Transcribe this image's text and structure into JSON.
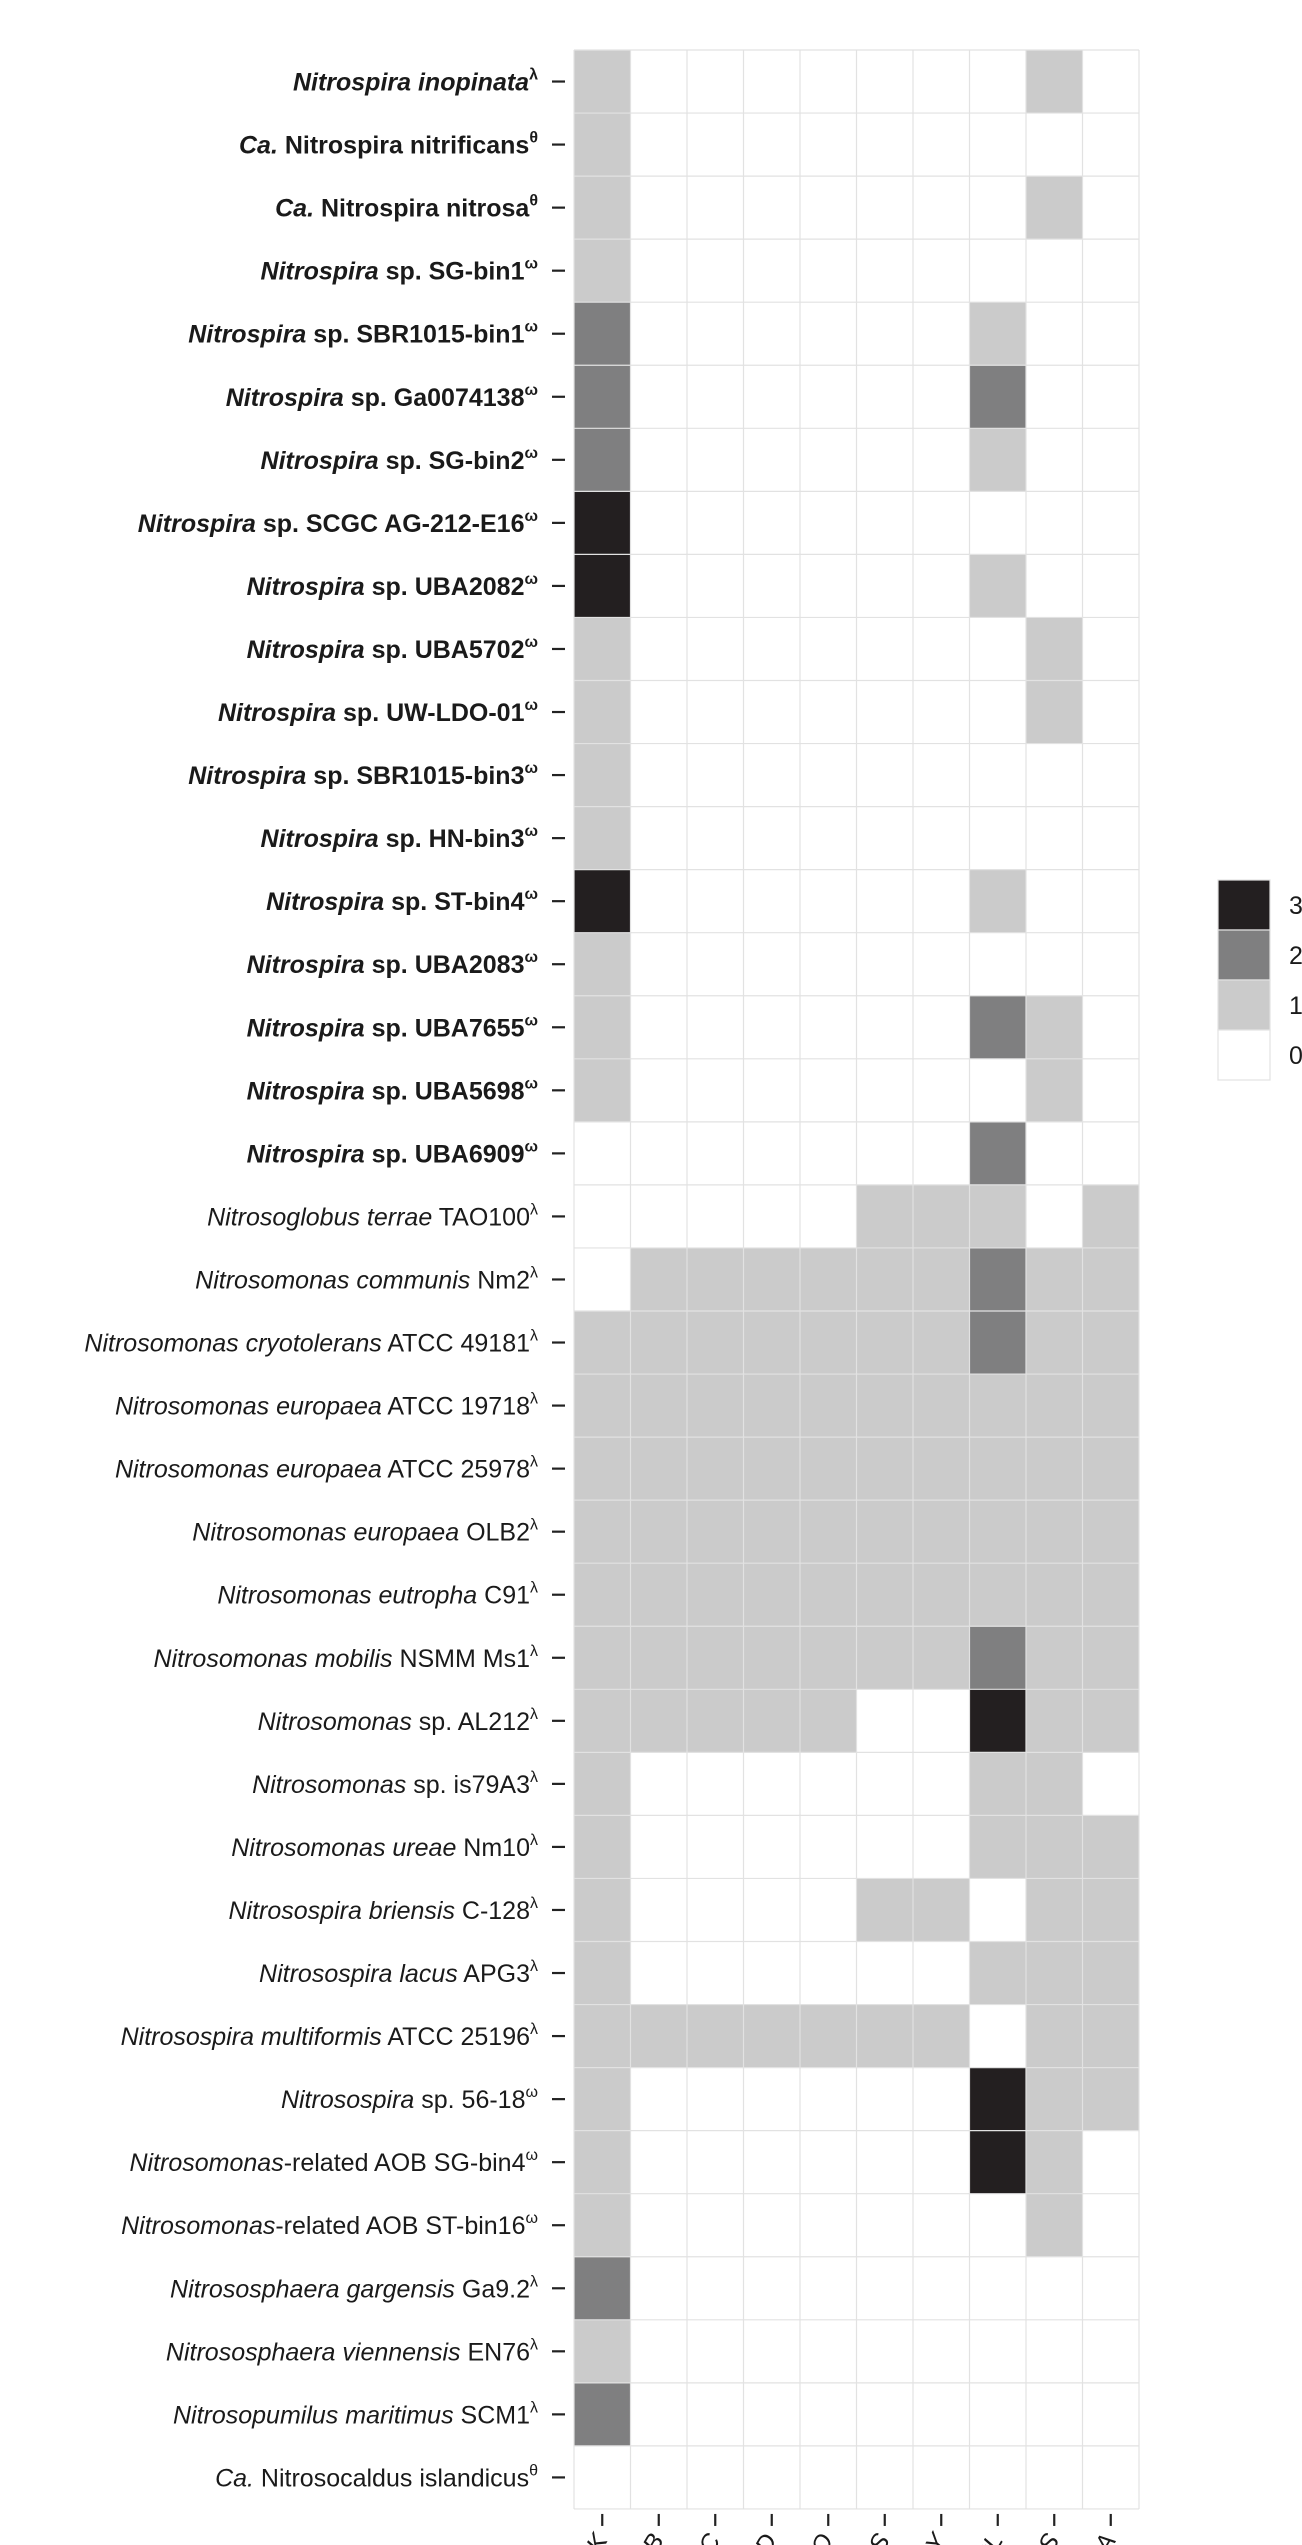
{
  "chart_data": {
    "type": "heatmap",
    "title": "",
    "xlabel": "",
    "ylabel": "",
    "grid": true,
    "legend_position": "right",
    "color_scale": [
      {
        "value": 0,
        "label": "0",
        "color": "#ffffff"
      },
      {
        "value": 1,
        "label": "1",
        "color": "#cbcbcb"
      },
      {
        "value": 2,
        "label": "2",
        "color": "#7f7f80"
      },
      {
        "value": 3,
        "label": "3",
        "color": "#231f20"
      }
    ],
    "columns": [
      "nirK",
      "norB",
      "norC",
      "norD",
      "norQ",
      "norS",
      "norY",
      "cytL",
      "cytS",
      "ncyA"
    ],
    "rows": [
      {
        "parts": [
          {
            "t": "Nitrospira inopinata",
            "b": true,
            "i": true
          }
        ],
        "sup": "λ"
      },
      {
        "parts": [
          {
            "t": "Ca.",
            "b": true,
            "i": true
          },
          {
            "t": " Nitrospira nitrificans",
            "b": true,
            "i": false
          }
        ],
        "sup": "θ"
      },
      {
        "parts": [
          {
            "t": "Ca.",
            "b": true,
            "i": true
          },
          {
            "t": " Nitrospira nitrosa",
            "b": true,
            "i": false
          }
        ],
        "sup": "θ"
      },
      {
        "parts": [
          {
            "t": "Nitrospira",
            "b": true,
            "i": true
          },
          {
            "t": " sp. SG-bin1",
            "b": true,
            "i": false
          }
        ],
        "sup": "ω"
      },
      {
        "parts": [
          {
            "t": "Nitrospira",
            "b": true,
            "i": true
          },
          {
            "t": " sp. SBR1015-bin1",
            "b": true,
            "i": false
          }
        ],
        "sup": "ω"
      },
      {
        "parts": [
          {
            "t": "Nitrospira",
            "b": true,
            "i": true
          },
          {
            "t": " sp. Ga0074138",
            "b": true,
            "i": false
          }
        ],
        "sup": "ω"
      },
      {
        "parts": [
          {
            "t": "Nitrospira",
            "b": true,
            "i": true
          },
          {
            "t": " sp. SG-bin2",
            "b": true,
            "i": false
          }
        ],
        "sup": "ω"
      },
      {
        "parts": [
          {
            "t": "Nitrospira",
            "b": true,
            "i": true
          },
          {
            "t": " sp. SCGC AG-212-E16",
            "b": true,
            "i": false
          }
        ],
        "sup": "ω"
      },
      {
        "parts": [
          {
            "t": "Nitrospira",
            "b": true,
            "i": true
          },
          {
            "t": " sp. UBA2082",
            "b": true,
            "i": false
          }
        ],
        "sup": "ω"
      },
      {
        "parts": [
          {
            "t": "Nitrospira",
            "b": true,
            "i": true
          },
          {
            "t": " sp. UBA5702",
            "b": true,
            "i": false
          }
        ],
        "sup": "ω"
      },
      {
        "parts": [
          {
            "t": "Nitrospira",
            "b": true,
            "i": true
          },
          {
            "t": " sp. UW-LDO-01",
            "b": true,
            "i": false
          }
        ],
        "sup": "ω"
      },
      {
        "parts": [
          {
            "t": "Nitrospira",
            "b": true,
            "i": true
          },
          {
            "t": " sp. SBR1015-bin3",
            "b": true,
            "i": false
          }
        ],
        "sup": "ω"
      },
      {
        "parts": [
          {
            "t": "Nitrospira",
            "b": true,
            "i": true
          },
          {
            "t": " sp. HN-bin3",
            "b": true,
            "i": false
          }
        ],
        "sup": "ω"
      },
      {
        "parts": [
          {
            "t": "Nitrospira",
            "b": true,
            "i": true
          },
          {
            "t": " sp. ST-bin4",
            "b": true,
            "i": false
          }
        ],
        "sup": "ω"
      },
      {
        "parts": [
          {
            "t": "Nitrospira",
            "b": true,
            "i": true
          },
          {
            "t": " sp. UBA2083",
            "b": true,
            "i": false
          }
        ],
        "sup": "ω"
      },
      {
        "parts": [
          {
            "t": "Nitrospira",
            "b": true,
            "i": true
          },
          {
            "t": " sp. UBA7655",
            "b": true,
            "i": false
          }
        ],
        "sup": "ω"
      },
      {
        "parts": [
          {
            "t": "Nitrospira",
            "b": true,
            "i": true
          },
          {
            "t": " sp. UBA5698",
            "b": true,
            "i": false
          }
        ],
        "sup": "ω"
      },
      {
        "parts": [
          {
            "t": "Nitrospira",
            "b": true,
            "i": true
          },
          {
            "t": " sp. UBA6909",
            "b": true,
            "i": false
          }
        ],
        "sup": "ω"
      },
      {
        "parts": [
          {
            "t": "Nitrosoglobus terrae",
            "b": false,
            "i": true
          },
          {
            "t": " TAO100",
            "b": false,
            "i": false
          }
        ],
        "sup": "λ"
      },
      {
        "parts": [
          {
            "t": "Nitrosomonas communis",
            "b": false,
            "i": true
          },
          {
            "t": " Nm2",
            "b": false,
            "i": false
          }
        ],
        "sup": "λ"
      },
      {
        "parts": [
          {
            "t": "Nitrosomonas cryotolerans",
            "b": false,
            "i": true
          },
          {
            "t": " ATCC 49181",
            "b": false,
            "i": false
          }
        ],
        "sup": "λ"
      },
      {
        "parts": [
          {
            "t": "Nitrosomonas europaea",
            "b": false,
            "i": true
          },
          {
            "t": " ATCC 19718",
            "b": false,
            "i": false
          }
        ],
        "sup": "λ"
      },
      {
        "parts": [
          {
            "t": "Nitrosomonas europaea",
            "b": false,
            "i": true
          },
          {
            "t": " ATCC 25978",
            "b": false,
            "i": false
          }
        ],
        "sup": "λ"
      },
      {
        "parts": [
          {
            "t": "Nitrosomonas europaea",
            "b": false,
            "i": true
          },
          {
            "t": " OLB2",
            "b": false,
            "i": false
          }
        ],
        "sup": "λ"
      },
      {
        "parts": [
          {
            "t": "Nitrosomonas eutropha",
            "b": false,
            "i": true
          },
          {
            "t": " C91",
            "b": false,
            "i": false
          }
        ],
        "sup": "λ"
      },
      {
        "parts": [
          {
            "t": "Nitrosomonas mobilis",
            "b": false,
            "i": true
          },
          {
            "t": " NSMM Ms1",
            "b": false,
            "i": false
          }
        ],
        "sup": "λ"
      },
      {
        "parts": [
          {
            "t": "Nitrosomonas",
            "b": false,
            "i": true
          },
          {
            "t": " sp. AL212",
            "b": false,
            "i": false
          }
        ],
        "sup": "λ"
      },
      {
        "parts": [
          {
            "t": "Nitrosomonas",
            "b": false,
            "i": true
          },
          {
            "t": " sp. is79A3",
            "b": false,
            "i": false
          }
        ],
        "sup": "λ"
      },
      {
        "parts": [
          {
            "t": "Nitrosomonas ureae",
            "b": false,
            "i": true
          },
          {
            "t": " Nm10",
            "b": false,
            "i": false
          }
        ],
        "sup": "λ"
      },
      {
        "parts": [
          {
            "t": "Nitrosospira briensis",
            "b": false,
            "i": true
          },
          {
            "t": " C-128",
            "b": false,
            "i": false
          }
        ],
        "sup": "λ"
      },
      {
        "parts": [
          {
            "t": "Nitrosospira lacus",
            "b": false,
            "i": true
          },
          {
            "t": " APG3",
            "b": false,
            "i": false
          }
        ],
        "sup": "λ"
      },
      {
        "parts": [
          {
            "t": "Nitrosospira multiformis",
            "b": false,
            "i": true
          },
          {
            "t": " ATCC 25196",
            "b": false,
            "i": false
          }
        ],
        "sup": "λ"
      },
      {
        "parts": [
          {
            "t": "Nitrosospira",
            "b": false,
            "i": true
          },
          {
            "t": " sp. 56-18",
            "b": false,
            "i": false
          }
        ],
        "sup": "ω"
      },
      {
        "parts": [
          {
            "t": "Nitrosomonas",
            "b": false,
            "i": true
          },
          {
            "t": "-related AOB SG-bin4",
            "b": false,
            "i": false
          }
        ],
        "sup": "ω"
      },
      {
        "parts": [
          {
            "t": "Nitrosomonas",
            "b": false,
            "i": true
          },
          {
            "t": "-related AOB ST-bin16",
            "b": false,
            "i": false
          }
        ],
        "sup": "ω"
      },
      {
        "parts": [
          {
            "t": "Nitrososphaera gargensis",
            "b": false,
            "i": true
          },
          {
            "t": " Ga9.2",
            "b": false,
            "i": false
          }
        ],
        "sup": "λ"
      },
      {
        "parts": [
          {
            "t": "Nitrososphaera viennensis",
            "b": false,
            "i": true
          },
          {
            "t": " EN76",
            "b": false,
            "i": false
          }
        ],
        "sup": "λ"
      },
      {
        "parts": [
          {
            "t": "Nitrosopumilus maritimus",
            "b": false,
            "i": true
          },
          {
            "t": " SCM1",
            "b": false,
            "i": false
          }
        ],
        "sup": "λ"
      },
      {
        "parts": [
          {
            "t": "Ca.",
            "b": false,
            "i": true
          },
          {
            "t": " Nitrosocaldus islandicus",
            "b": false,
            "i": false
          }
        ],
        "sup": "θ"
      }
    ],
    "values": [
      [
        1,
        0,
        0,
        0,
        0,
        0,
        0,
        0,
        1,
        0
      ],
      [
        1,
        0,
        0,
        0,
        0,
        0,
        0,
        0,
        0,
        0
      ],
      [
        1,
        0,
        0,
        0,
        0,
        0,
        0,
        0,
        1,
        0
      ],
      [
        1,
        0,
        0,
        0,
        0,
        0,
        0,
        0,
        0,
        0
      ],
      [
        2,
        0,
        0,
        0,
        0,
        0,
        0,
        1,
        0,
        0
      ],
      [
        2,
        0,
        0,
        0,
        0,
        0,
        0,
        2,
        0,
        0
      ],
      [
        2,
        0,
        0,
        0,
        0,
        0,
        0,
        1,
        0,
        0
      ],
      [
        3,
        0,
        0,
        0,
        0,
        0,
        0,
        0,
        0,
        0
      ],
      [
        3,
        0,
        0,
        0,
        0,
        0,
        0,
        1,
        0,
        0
      ],
      [
        1,
        0,
        0,
        0,
        0,
        0,
        0,
        0,
        1,
        0
      ],
      [
        1,
        0,
        0,
        0,
        0,
        0,
        0,
        0,
        1,
        0
      ],
      [
        1,
        0,
        0,
        0,
        0,
        0,
        0,
        0,
        0,
        0
      ],
      [
        1,
        0,
        0,
        0,
        0,
        0,
        0,
        0,
        0,
        0
      ],
      [
        3,
        0,
        0,
        0,
        0,
        0,
        0,
        1,
        0,
        0
      ],
      [
        1,
        0,
        0,
        0,
        0,
        0,
        0,
        0,
        0,
        0
      ],
      [
        1,
        0,
        0,
        0,
        0,
        0,
        0,
        2,
        1,
        0
      ],
      [
        1,
        0,
        0,
        0,
        0,
        0,
        0,
        0,
        1,
        0
      ],
      [
        0,
        0,
        0,
        0,
        0,
        0,
        0,
        2,
        0,
        0
      ],
      [
        0,
        0,
        0,
        0,
        0,
        1,
        1,
        1,
        0,
        1
      ],
      [
        0,
        1,
        1,
        1,
        1,
        1,
        1,
        2,
        1,
        1
      ],
      [
        1,
        1,
        1,
        1,
        1,
        1,
        1,
        2,
        1,
        1
      ],
      [
        1,
        1,
        1,
        1,
        1,
        1,
        1,
        1,
        1,
        1
      ],
      [
        1,
        1,
        1,
        1,
        1,
        1,
        1,
        1,
        1,
        1
      ],
      [
        1,
        1,
        1,
        1,
        1,
        1,
        1,
        1,
        1,
        1
      ],
      [
        1,
        1,
        1,
        1,
        1,
        1,
        1,
        1,
        1,
        1
      ],
      [
        1,
        1,
        1,
        1,
        1,
        1,
        1,
        2,
        1,
        1
      ],
      [
        1,
        1,
        1,
        1,
        1,
        0,
        0,
        3,
        1,
        1
      ],
      [
        1,
        0,
        0,
        0,
        0,
        0,
        0,
        1,
        1,
        0
      ],
      [
        1,
        0,
        0,
        0,
        0,
        0,
        0,
        1,
        1,
        1
      ],
      [
        1,
        0,
        0,
        0,
        0,
        1,
        1,
        0,
        1,
        1
      ],
      [
        1,
        0,
        0,
        0,
        0,
        0,
        0,
        1,
        1,
        1
      ],
      [
        1,
        1,
        1,
        1,
        1,
        1,
        1,
        0,
        1,
        1
      ],
      [
        1,
        0,
        0,
        0,
        0,
        0,
        0,
        3,
        1,
        1
      ],
      [
        1,
        0,
        0,
        0,
        0,
        0,
        0,
        3,
        1,
        0
      ],
      [
        1,
        0,
        0,
        0,
        0,
        0,
        0,
        0,
        1,
        0
      ],
      [
        2,
        0,
        0,
        0,
        0,
        0,
        0,
        0,
        0,
        0
      ],
      [
        1,
        0,
        0,
        0,
        0,
        0,
        0,
        0,
        0,
        0
      ],
      [
        2,
        0,
        0,
        0,
        0,
        0,
        0,
        0,
        0,
        0
      ],
      [
        0,
        0,
        0,
        0,
        0,
        0,
        0,
        0,
        0,
        0
      ]
    ]
  }
}
